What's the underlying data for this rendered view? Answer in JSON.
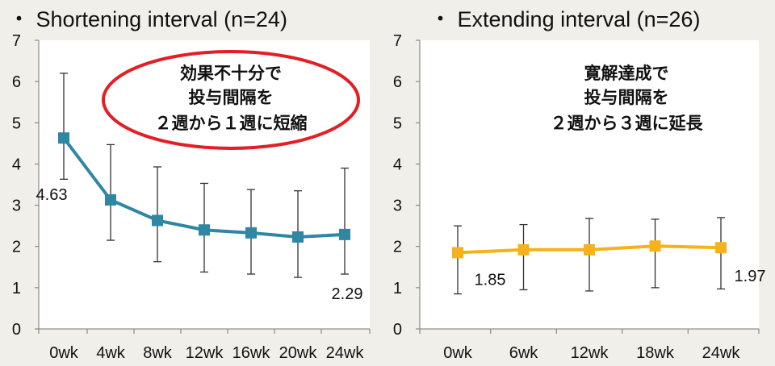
{
  "chart_data": [
    {
      "type": "line",
      "title": "・ Shortening interval (n=24)",
      "categories": [
        "0wk",
        "4wk",
        "8wk",
        "12wk",
        "16wk",
        "20wk",
        "24wk"
      ],
      "series": [
        {
          "values": [
            4.63,
            3.13,
            2.63,
            2.4,
            2.33,
            2.23,
            2.29
          ],
          "error_upper": [
            6.2,
            4.47,
            3.93,
            3.53,
            3.38,
            3.35,
            3.9
          ],
          "error_lower": [
            3.63,
            2.15,
            1.63,
            1.38,
            1.33,
            1.25,
            1.33
          ],
          "color": "#2e87a3",
          "marker": "square"
        }
      ],
      "data_labels": [
        {
          "index": 0,
          "text": "4.63"
        },
        {
          "index": 6,
          "text": "2.29"
        }
      ],
      "annotation": {
        "lines": [
          "効果不十分で",
          "投与間隔を",
          "２週から１週に短縮"
        ],
        "shape": "ellipse",
        "border_color": "#e31e24"
      },
      "yticks": [
        0,
        1,
        2,
        3,
        4,
        5,
        6,
        7
      ],
      "ylim": [
        0,
        7
      ],
      "grid": false,
      "background": "#ffffff"
    },
    {
      "type": "line",
      "title": "・ Extending interval (n=26)",
      "categories": [
        "0wk",
        "6wk",
        "12wk",
        "18wk",
        "24wk"
      ],
      "series": [
        {
          "values": [
            1.85,
            1.92,
            1.92,
            2.01,
            1.97
          ],
          "error_upper": [
            2.5,
            2.53,
            2.68,
            2.66,
            2.7
          ],
          "error_lower": [
            0.85,
            0.95,
            0.92,
            1.0,
            0.97
          ],
          "color": "#f5b21a",
          "marker": "square"
        }
      ],
      "data_labels": [
        {
          "index": 0,
          "text": "1.85"
        },
        {
          "index": 4,
          "text": "1.97"
        }
      ],
      "annotation": {
        "lines": [
          "寛解達成で",
          "投与間隔を",
          "２週から３週に延長"
        ],
        "shape": "none"
      },
      "yticks": [
        0,
        1,
        2,
        3,
        4,
        5,
        6,
        7
      ],
      "ylim": [
        0,
        7
      ],
      "grid": false,
      "background": "#ffffff"
    }
  ]
}
